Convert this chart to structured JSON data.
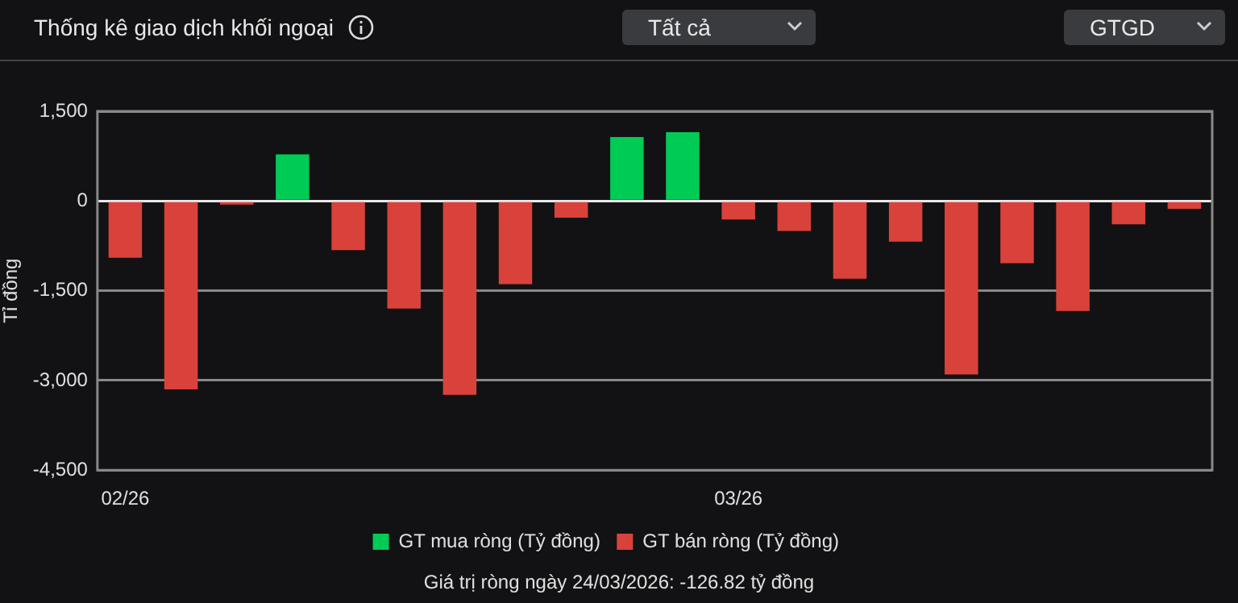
{
  "chart_data": {
    "type": "bar",
    "title": "Thống kê giao dịch khối ngoại",
    "ylabel": "Tỉ đồng",
    "categories": [
      "02/26",
      null,
      null,
      null,
      null,
      null,
      null,
      null,
      null,
      null,
      null,
      "03/26",
      null,
      null,
      null,
      null,
      null,
      null,
      null,
      null
    ],
    "series": [
      {
        "name": "GT mua ròng (Tỷ đồng)",
        "color": "#00cc55",
        "values": [
          null,
          null,
          null,
          780,
          null,
          null,
          null,
          null,
          null,
          1070,
          1150,
          null,
          null,
          null,
          null,
          null,
          null,
          null,
          null,
          null
        ]
      },
      {
        "name": "GT bán ròng (Tỷ đồng)",
        "color": "#d9423a",
        "values": [
          -950,
          -3150,
          -60,
          null,
          -820,
          -1800,
          -3240,
          -1390,
          -280,
          null,
          null,
          -310,
          -500,
          -1300,
          -680,
          -2900,
          -1040,
          -1840,
          -390,
          -130
        ]
      }
    ],
    "stacked": true,
    "ylim": [
      -4500,
      1500
    ],
    "yticks": [
      {
        "value": -4500,
        "label": "-4,500"
      },
      {
        "value": -3000,
        "label": "-3,000"
      },
      {
        "value": -1500,
        "label": "-1,500"
      },
      0,
      {
        "value": 1500,
        "label": "1,500"
      }
    ],
    "grid": "y",
    "legend": "bottom",
    "annotations": [
      "Tất cả",
      "GTGD",
      "Giá trị ròng ngày 24/03/2026: -126.82 tỷ đồng"
    ]
  }
}
